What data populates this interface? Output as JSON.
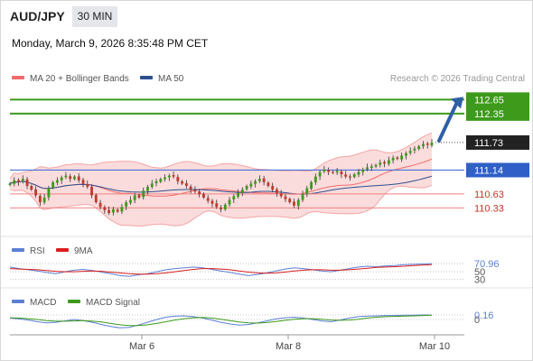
{
  "header": {
    "symbol": "AUD/JPY",
    "timeframe": "30 MIN",
    "datetime": "Monday, March 9, 2026 8:35:48 PM CET"
  },
  "colors": {
    "bollinger": "#f4a6a6",
    "bollinger_fill": "#fbdcdc",
    "ma20": "#f26b6b",
    "ma50": "#2b4f8f",
    "resistance": "#3d9a1b",
    "pivot": "#4a72d8",
    "support": "#f08080",
    "arrow": "#2f5fa7",
    "rsi": "#5b7fd4",
    "rsi_9ma": "#d81e1e",
    "macd": "#5b7fd4",
    "macd_signal": "#3d9a1b",
    "candle_up": "#3d9a1b",
    "candle_down": "#c0392b",
    "current_tag": "#222222"
  },
  "chart_data": [
    {
      "type": "candlestick",
      "legend": [
        {
          "name": "MA 20 + Bollinger Bands",
          "color": "#f26b6b"
        },
        {
          "name": "MA 50",
          "color": "#2b4f8f"
        }
      ],
      "attribution": "Research © 2026 Trading Central",
      "ylim": [
        109.95,
        112.85
      ],
      "x_ticks": [
        "Mar 6",
        "Mar 8",
        "Mar 10"
      ],
      "levels": [
        {
          "value": 112.65,
          "label": "112.65",
          "kind": "resistance"
        },
        {
          "value": 112.35,
          "label": "112.35",
          "kind": "resistance"
        },
        {
          "value": 111.73,
          "label": "111.73",
          "kind": "current"
        },
        {
          "value": 111.14,
          "label": "111.14",
          "kind": "pivot"
        },
        {
          "value": 110.63,
          "label": "110.63",
          "kind": "support"
        },
        {
          "value": 110.33,
          "label": "110.33",
          "kind": "support"
        }
      ],
      "close": [
        110.85,
        110.92,
        110.88,
        110.95,
        110.8,
        110.72,
        110.6,
        110.45,
        110.55,
        110.75,
        110.88,
        110.92,
        110.98,
        111.02,
        110.95,
        111.0,
        110.92,
        110.85,
        110.78,
        110.6,
        110.45,
        110.35,
        110.28,
        110.22,
        110.3,
        110.25,
        110.35,
        110.45,
        110.5,
        110.6,
        110.55,
        110.7,
        110.78,
        110.85,
        110.9,
        110.95,
        110.98,
        111.02,
        111.0,
        110.9,
        110.85,
        110.8,
        110.72,
        110.68,
        110.62,
        110.55,
        110.48,
        110.42,
        110.35,
        110.3,
        110.4,
        110.5,
        110.58,
        110.65,
        110.72,
        110.8,
        110.85,
        110.9,
        110.95,
        110.88,
        110.8,
        110.72,
        110.65,
        110.58,
        110.52,
        110.45,
        110.38,
        110.5,
        110.62,
        110.75,
        110.88,
        111.0,
        111.1,
        111.15,
        111.1,
        111.08,
        111.12,
        111.05,
        111.0,
        110.98,
        111.05,
        111.1,
        111.15,
        111.2,
        111.22,
        111.25,
        111.3,
        111.28,
        111.35,
        111.4,
        111.38,
        111.45,
        111.5,
        111.55,
        111.6,
        111.65,
        111.7,
        111.68,
        111.73
      ]
    },
    {
      "type": "line",
      "legend": [
        {
          "name": "RSI",
          "color": "#5b7fd4"
        },
        {
          "name": "9MA",
          "color": "#d81e1e"
        }
      ],
      "current_value": 70.96,
      "ticks": [
        70.96,
        50,
        30
      ],
      "ylim": [
        20,
        85
      ],
      "series": [
        {
          "name": "RSI",
          "values": [
            62,
            58,
            55,
            52,
            48,
            45,
            50,
            54,
            56,
            53,
            49,
            45,
            40,
            38,
            42,
            45,
            50,
            55,
            58,
            60,
            62,
            60,
            56,
            52,
            48,
            44,
            40,
            43,
            47,
            52,
            57,
            60,
            58,
            55,
            52,
            50,
            54,
            58,
            62,
            64,
            63,
            65,
            66,
            68,
            69,
            70,
            70.96
          ]
        },
        {
          "name": "9MA",
          "values": [
            58,
            57,
            56,
            55,
            53,
            51,
            50,
            50,
            51,
            52,
            51,
            49,
            47,
            45,
            44,
            44,
            45,
            47,
            50,
            53,
            56,
            58,
            58,
            57,
            55,
            52,
            49,
            47,
            46,
            47,
            49,
            52,
            54,
            55,
            55,
            54,
            54,
            55,
            57,
            59,
            61,
            62,
            63,
            64,
            66,
            67,
            68
          ]
        }
      ]
    },
    {
      "type": "line",
      "legend": [
        {
          "name": "MACD",
          "color": "#5b7fd4"
        },
        {
          "name": "MACD Signal",
          "color": "#3d9a1b"
        }
      ],
      "current_value": 0.16,
      "ticks": [
        0.16,
        0
      ],
      "ylim": [
        -0.45,
        0.45
      ],
      "series": [
        {
          "name": "MACD",
          "values": [
            0.05,
            0.02,
            -0.02,
            -0.08,
            -0.12,
            -0.1,
            -0.05,
            0.0,
            -0.04,
            -0.1,
            -0.18,
            -0.25,
            -0.3,
            -0.28,
            -0.2,
            -0.1,
            0.0,
            0.08,
            0.12,
            0.13,
            0.1,
            0.05,
            -0.02,
            -0.1,
            -0.16,
            -0.2,
            -0.18,
            -0.12,
            -0.05,
            0.02,
            0.06,
            0.08,
            0.05,
            0.0,
            -0.05,
            -0.08,
            -0.02,
            0.05,
            0.1,
            0.12,
            0.13,
            0.14,
            0.14,
            0.15,
            0.15,
            0.16,
            0.16
          ]
        },
        {
          "name": "MACD Signal",
          "values": [
            0.06,
            0.05,
            0.03,
            0.0,
            -0.04,
            -0.06,
            -0.06,
            -0.05,
            -0.04,
            -0.06,
            -0.09,
            -0.14,
            -0.19,
            -0.22,
            -0.22,
            -0.19,
            -0.14,
            -0.08,
            -0.02,
            0.03,
            0.06,
            0.07,
            0.05,
            0.01,
            -0.04,
            -0.09,
            -0.12,
            -0.13,
            -0.11,
            -0.07,
            -0.03,
            0.01,
            0.03,
            0.03,
            0.01,
            -0.02,
            -0.03,
            -0.02,
            0.01,
            0.05,
            0.08,
            0.1,
            0.11,
            0.12,
            0.13,
            0.14,
            0.15
          ]
        }
      ]
    }
  ]
}
